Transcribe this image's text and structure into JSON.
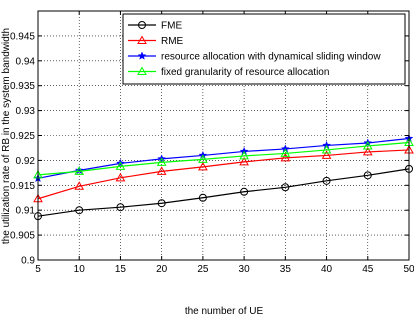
{
  "chart_data": {
    "type": "line",
    "title": "",
    "xlabel": "the number of UE",
    "ylabel": "the utilization rate of RB in the system bandwidth",
    "x": [
      5,
      10,
      15,
      20,
      25,
      30,
      35,
      40,
      45,
      50
    ],
    "xlim": [
      5,
      50
    ],
    "ylim": [
      0.9,
      0.95
    ],
    "xticks": [
      5,
      10,
      15,
      20,
      25,
      30,
      35,
      40,
      45,
      50
    ],
    "yticks": [
      0.9,
      0.905,
      0.91,
      0.915,
      0.92,
      0.925,
      0.93,
      0.935,
      0.94,
      0.945
    ],
    "ytick_labels": [
      "0.9",
      "0.905",
      "0.91",
      "0.915",
      "0.92",
      "0.925",
      "0.93",
      "0.935",
      "0.94",
      "0.945"
    ],
    "grid": true,
    "grid_style": "dotted",
    "legend_position": "top-right",
    "series": [
      {
        "name": "FME",
        "color": "#000000",
        "marker": "circle",
        "values": [
          0.9088,
          0.91,
          0.9106,
          0.9114,
          0.9125,
          0.9137,
          0.9146,
          0.9159,
          0.917,
          0.9183
        ]
      },
      {
        "name": "RME",
        "color": "#ff0000",
        "marker": "triangle",
        "values": [
          0.9123,
          0.9148,
          0.9165,
          0.9178,
          0.9187,
          0.9197,
          0.9205,
          0.921,
          0.9217,
          0.9221
        ]
      },
      {
        "name": "resource allocation with dynamical sliding window",
        "color": "#0000ff",
        "marker": "star",
        "values": [
          0.9164,
          0.918,
          0.9194,
          0.9203,
          0.921,
          0.9218,
          0.9223,
          0.923,
          0.9235,
          0.9244
        ]
      },
      {
        "name": "fixed granularity of resource allocation",
        "color": "#00ff00",
        "marker": "triangle",
        "values": [
          0.9171,
          0.9178,
          0.9188,
          0.9196,
          0.9202,
          0.9209,
          0.9214,
          0.9221,
          0.9229,
          0.9236
        ]
      }
    ]
  }
}
